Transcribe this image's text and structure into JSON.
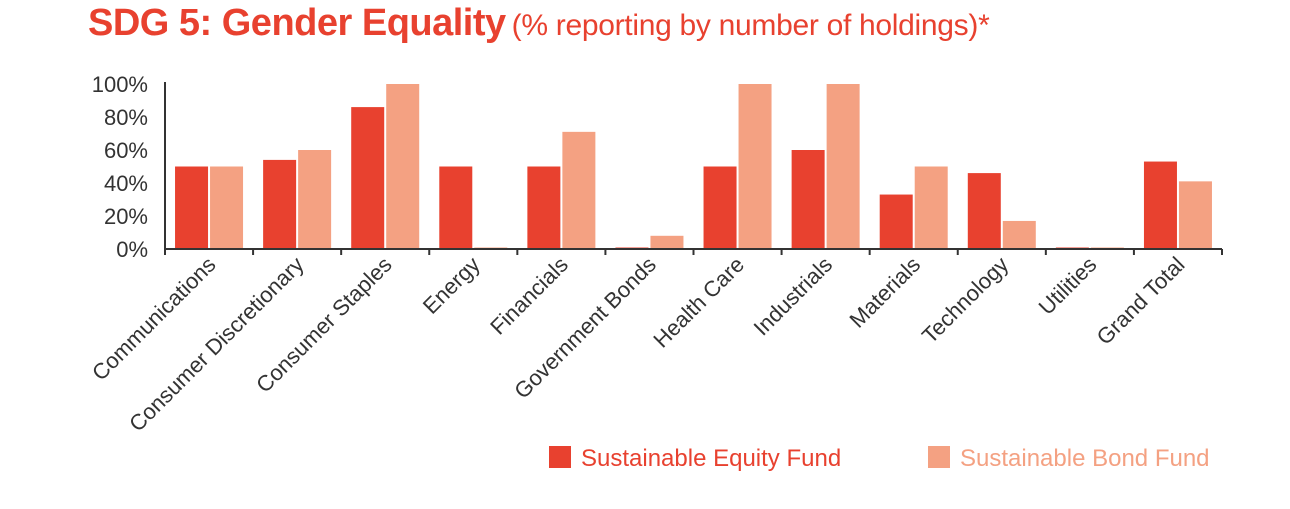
{
  "chart_data": {
    "type": "bar",
    "title": "SDG 5: Gender Equality",
    "subtitle": "(% reporting by number of holdings)*",
    "categories": [
      "Communications",
      "Consumer Discretionary",
      "Consumer Staples",
      "Energy",
      "Financials",
      "Government Bonds",
      "Health Care",
      "Industrials",
      "Materials",
      "Technology",
      "Utilities",
      "Grand Total"
    ],
    "series": [
      {
        "name": "Sustainable Equity Fund",
        "color": "#e8412f",
        "values": [
          50,
          54,
          86,
          50,
          50,
          0,
          50,
          60,
          33,
          46,
          0,
          53
        ]
      },
      {
        "name": "Sustainable Bond Fund",
        "color": "#f4a182",
        "values": [
          50,
          60,
          100,
          0,
          71,
          8,
          100,
          100,
          50,
          17,
          0,
          41
        ]
      }
    ],
    "yticks": [
      "100%",
      "80%",
      "60%",
      "40%",
      "20%",
      "0%"
    ],
    "ylim": [
      0,
      100
    ],
    "legend_position": "bottom-right",
    "grid": false
  }
}
